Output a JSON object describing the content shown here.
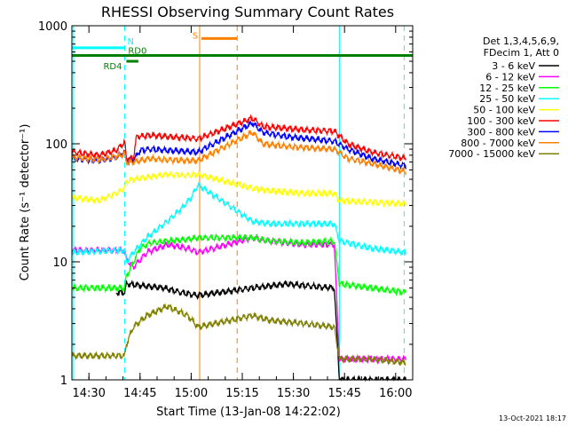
{
  "chart_data": {
    "type": "line",
    "title": "RHESSI Observing Summary Count Rates",
    "xlabel": "Start Time (13-Jan-08 14:22:02)",
    "ylabel": "Count Rate (s⁻¹ detector⁻¹)",
    "ylog": true,
    "ylim": [
      1,
      1000
    ],
    "xlim_minutes": [
      22,
      122
    ],
    "x_ticks": [
      {
        "minute": 27,
        "label": "14:30"
      },
      {
        "minute": 42,
        "label": "14:45"
      },
      {
        "minute": 57,
        "label": "15:00"
      },
      {
        "minute": 72,
        "label": "15:15"
      },
      {
        "minute": 87,
        "label": "15:30"
      },
      {
        "minute": 102,
        "label": "15:45"
      },
      {
        "minute": 117,
        "label": "16:00"
      }
    ],
    "y_ticks": [
      {
        "value": 1,
        "label": "1"
      },
      {
        "value": 10,
        "label": "10"
      },
      {
        "value": 100,
        "label": "100"
      },
      {
        "value": 1000,
        "label": "1000"
      }
    ],
    "legend_header": [
      "Det 1,3,4,5,6,9,",
      "FDecim 1, Att 0"
    ],
    "legend_position": "right",
    "series": [
      {
        "name": "3 - 6 keV",
        "color": "#000000",
        "points": [
          [
            35,
            5.5
          ],
          [
            37.5,
            5.5
          ],
          [
            38,
            6.5
          ],
          [
            49,
            6.0
          ],
          [
            54,
            5.5
          ],
          [
            59,
            5.2
          ],
          [
            75,
            6.0
          ],
          [
            85,
            6.5
          ],
          [
            90,
            6.3
          ],
          [
            99,
            6.0
          ],
          [
            100.5,
            1.0
          ],
          [
            120,
            1.0
          ]
        ]
      },
      {
        "name": "6 - 12 keV",
        "color": "#ff00ff",
        "points": [
          [
            22,
            12.5
          ],
          [
            37.5,
            12.5
          ],
          [
            38,
            10.5
          ],
          [
            40,
            9
          ],
          [
            44,
            12
          ],
          [
            50,
            14
          ],
          [
            56,
            13
          ],
          [
            59,
            12
          ],
          [
            75,
            16
          ],
          [
            80,
            15
          ],
          [
            90,
            14
          ],
          [
            99,
            14
          ],
          [
            100.5,
            1.5
          ],
          [
            102,
            1.5
          ],
          [
            120,
            1.5
          ]
        ]
      },
      {
        "name": "12 - 25 keV",
        "color": "#00ff00",
        "points": [
          [
            22,
            6.0
          ],
          [
            37.5,
            6.0
          ],
          [
            38,
            7.5
          ],
          [
            42,
            13
          ],
          [
            45,
            14.5
          ],
          [
            50,
            15
          ],
          [
            56,
            15.5
          ],
          [
            59,
            16
          ],
          [
            75,
            16
          ],
          [
            80,
            15
          ],
          [
            90,
            14.5
          ],
          [
            99,
            15
          ],
          [
            100.5,
            6.5
          ],
          [
            110,
            6.0
          ],
          [
            120,
            5.5
          ]
        ]
      },
      {
        "name": "25 - 50 keV",
        "color": "#00ffff",
        "points": [
          [
            22,
            12
          ],
          [
            35,
            12.5
          ],
          [
            37.5,
            12.5
          ],
          [
            38,
            10
          ],
          [
            40,
            12
          ],
          [
            44,
            16
          ],
          [
            50,
            22
          ],
          [
            54,
            28
          ],
          [
            57,
            35
          ],
          [
            59,
            45
          ],
          [
            75,
            22
          ],
          [
            80,
            21
          ],
          [
            90,
            21
          ],
          [
            99,
            21
          ],
          [
            100.5,
            15
          ],
          [
            110,
            13
          ],
          [
            120,
            12
          ]
        ]
      },
      {
        "name": "50 - 100 keV",
        "color": "#ffff00",
        "points": [
          [
            22,
            35
          ],
          [
            30,
            33
          ],
          [
            35,
            38
          ],
          [
            37.5,
            42
          ],
          [
            38,
            48
          ],
          [
            40,
            50
          ],
          [
            44,
            52
          ],
          [
            50,
            55
          ],
          [
            56,
            54
          ],
          [
            59,
            55
          ],
          [
            75,
            42
          ],
          [
            80,
            40
          ],
          [
            90,
            38
          ],
          [
            99,
            38
          ],
          [
            100.5,
            33
          ],
          [
            110,
            32
          ],
          [
            120,
            31
          ]
        ]
      },
      {
        "name": "100 - 300 keV",
        "color": "#ff0000",
        "points": [
          [
            22,
            85
          ],
          [
            30,
            80
          ],
          [
            35,
            88
          ],
          [
            37.5,
            103
          ],
          [
            38,
            75
          ],
          [
            40,
            75
          ],
          [
            41,
            115
          ],
          [
            45,
            118
          ],
          [
            50,
            115
          ],
          [
            56,
            112
          ],
          [
            59,
            110
          ],
          [
            75,
            165
          ],
          [
            78,
            140
          ],
          [
            85,
            135
          ],
          [
            92,
            130
          ],
          [
            99,
            128
          ],
          [
            103,
            100
          ],
          [
            110,
            85
          ],
          [
            120,
            75
          ]
        ]
      },
      {
        "name": "300 - 800 keV",
        "color": "#0000ff",
        "points": [
          [
            22,
            75
          ],
          [
            30,
            72
          ],
          [
            35,
            77
          ],
          [
            37.5,
            85
          ],
          [
            38,
            70
          ],
          [
            40,
            72
          ],
          [
            42,
            88
          ],
          [
            45,
            90
          ],
          [
            50,
            88
          ],
          [
            56,
            86
          ],
          [
            59,
            85
          ],
          [
            75,
            150
          ],
          [
            78,
            125
          ],
          [
            85,
            115
          ],
          [
            92,
            110
          ],
          [
            99,
            105
          ],
          [
            103,
            90
          ],
          [
            110,
            75
          ],
          [
            120,
            65
          ]
        ]
      },
      {
        "name": "800 - 7000 keV",
        "color": "#ff8000",
        "points": [
          [
            22,
            77
          ],
          [
            30,
            73
          ],
          [
            35,
            78
          ],
          [
            37.5,
            82
          ],
          [
            38,
            70
          ],
          [
            40,
            70
          ],
          [
            42,
            72
          ],
          [
            45,
            75
          ],
          [
            50,
            73
          ],
          [
            56,
            72
          ],
          [
            59,
            72
          ],
          [
            75,
            125
          ],
          [
            78,
            100
          ],
          [
            85,
            95
          ],
          [
            92,
            92
          ],
          [
            99,
            90
          ],
          [
            103,
            75
          ],
          [
            110,
            68
          ],
          [
            120,
            58
          ]
        ]
      },
      {
        "name": "7000 - 15000 keV",
        "color": "#808000",
        "points": [
          [
            22,
            1.6
          ],
          [
            37.5,
            1.6
          ],
          [
            38,
            2.0
          ],
          [
            40,
            2.8
          ],
          [
            44,
            3.5
          ],
          [
            50,
            4.2
          ],
          [
            56,
            3.5
          ],
          [
            59,
            2.8
          ],
          [
            75,
            3.5
          ],
          [
            80,
            3.2
          ],
          [
            90,
            3.0
          ],
          [
            99,
            2.8
          ],
          [
            100.5,
            1.5
          ],
          [
            110,
            1.5
          ],
          [
            120,
            1.4
          ]
        ]
      }
    ],
    "annotations": [
      {
        "label": "N",
        "color": "#00ffff",
        "x_range": [
          22,
          37.5
        ],
        "level": 650
      },
      {
        "label": "S",
        "color": "#ff8000",
        "x_range": [
          60,
          70.5
        ],
        "level": 780
      },
      {
        "label": "RD0",
        "color": "#008000",
        "x_range": [
          22,
          122
        ],
        "level": 560
      },
      {
        "label": "RD4",
        "color": "#008000",
        "x_range": [
          38,
          41.5
        ],
        "level": 500
      }
    ],
    "vertical_markers": [
      {
        "minute": 22.5,
        "color": "#00ffff",
        "style": "solid"
      },
      {
        "minute": 37.5,
        "color": "#00ffff",
        "style": "dashed"
      },
      {
        "minute": 59.5,
        "color": "#ff8000",
        "style": "solid"
      },
      {
        "minute": 70.5,
        "color": "#ff8000",
        "style": "dashed"
      },
      {
        "minute": 100.5,
        "color": "#00ffff",
        "style": "solid"
      },
      {
        "minute": 119.5,
        "color": "#00ffff",
        "style": "dashed"
      }
    ]
  },
  "timestamp": "13-Oct-2021 18:17"
}
